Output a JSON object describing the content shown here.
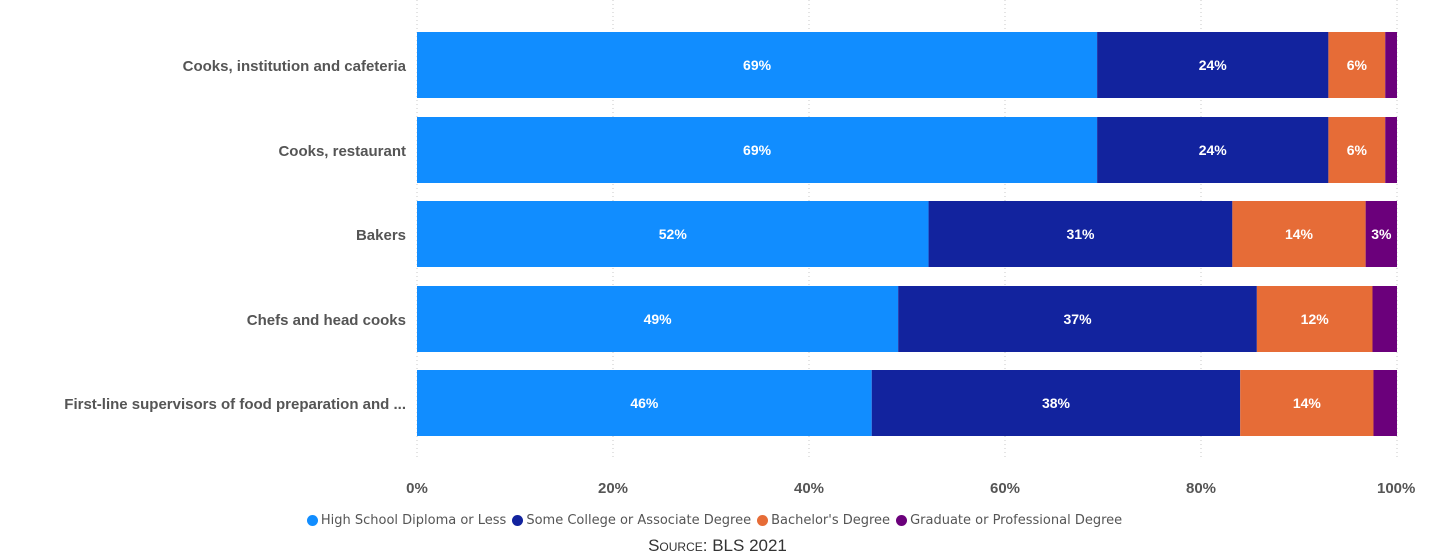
{
  "chart_data": {
    "type": "bar",
    "orientation": "horizontal",
    "stacked": true,
    "categories": [
      "Cooks, institution and cafeteria",
      "Cooks, restaurant",
      "Bakers",
      "Chefs and head cooks",
      "First-line supervisors of food preparation and ..."
    ],
    "series": [
      {
        "name": "High School Diploma or Less",
        "color": "#118DFF",
        "values": [
          69.4,
          69.4,
          52.2,
          49.1,
          46.4
        ],
        "labels": [
          "69%",
          "69%",
          "52%",
          "49%",
          "46%"
        ]
      },
      {
        "name": "Some College or Associate Degree",
        "color": "#12239E",
        "values": [
          23.6,
          23.6,
          31.0,
          36.6,
          37.6
        ],
        "labels": [
          "24%",
          "24%",
          "31%",
          "37%",
          "38%"
        ]
      },
      {
        "name": "Bachelor's Degree",
        "color": "#E66C37",
        "values": [
          5.8,
          5.8,
          13.6,
          11.8,
          13.6
        ],
        "labels": [
          "6%",
          "6%",
          "14%",
          "12%",
          "14%"
        ]
      },
      {
        "name": "Graduate or Professional Degree",
        "color": "#6B007B",
        "values": [
          1.2,
          1.2,
          3.2,
          2.5,
          2.4
        ],
        "labels": [
          "",
          "",
          "3%",
          "",
          ""
        ]
      }
    ],
    "xlim": [
      0,
      100
    ],
    "xticks": [
      "0%",
      "20%",
      "40%",
      "60%",
      "80%",
      "100%"
    ],
    "grid": "vertical dotted",
    "legend_position": "bottom"
  },
  "source": "Source: BLS 2021"
}
